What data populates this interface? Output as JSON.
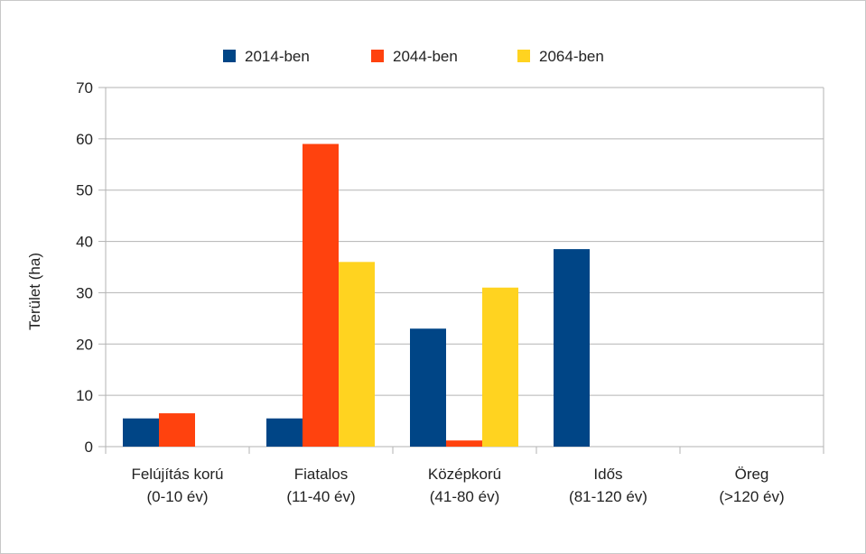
{
  "chart_data": {
    "type": "bar",
    "title": "",
    "ylabel": "Terület (ha)",
    "xlabel": "",
    "ylim": [
      0,
      70
    ],
    "yticks": [
      0,
      10,
      20,
      30,
      40,
      50,
      60,
      70
    ],
    "grid": true,
    "legend_position": "top-center",
    "categories": [
      [
        "Felújítás korú",
        "(0-10 év)"
      ],
      [
        "Fiatalos",
        "(11-40 év)"
      ],
      [
        "Középkorú",
        "(41-80 év)"
      ],
      [
        "Idős",
        "(81-120 év)"
      ],
      [
        "Öreg",
        "(>120 év)"
      ]
    ],
    "series": [
      {
        "name": "2014-ben",
        "color": "#004586",
        "values": [
          5.5,
          5.5,
          23,
          38.5,
          0
        ]
      },
      {
        "name": "2044-ben",
        "color": "#ff420e",
        "values": [
          6.5,
          59,
          1.2,
          0,
          0
        ]
      },
      {
        "name": "2064-ben",
        "color": "#ffd320",
        "values": [
          0,
          36,
          31,
          0,
          0
        ]
      }
    ]
  }
}
